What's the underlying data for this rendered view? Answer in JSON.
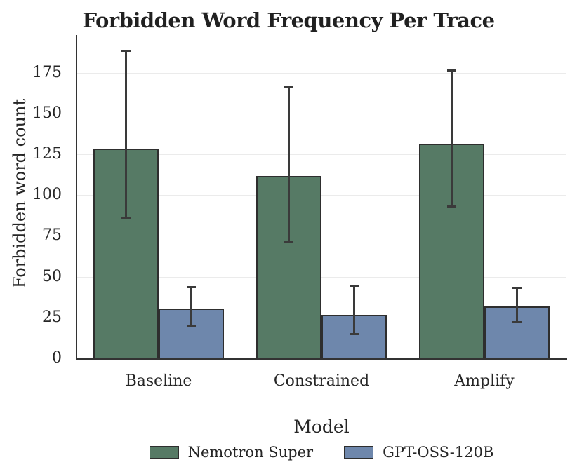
{
  "chart_data": {
    "type": "bar",
    "title": "Forbidden Word Frequency Per Trace",
    "xlabel": "Model",
    "ylabel": "Forbidden word count",
    "categories": [
      "Baseline",
      "Constrained",
      "Amplify"
    ],
    "series": [
      {
        "name": "Nemotron Super",
        "color": "#567a65",
        "values": [
          128.5,
          111.5,
          131.5
        ],
        "err_low": [
          86,
          71,
          93
        ],
        "err_high": [
          188.5,
          166.5,
          176.5
        ]
      },
      {
        "name": "GPT-OSS-120B",
        "color": "#6e87ac",
        "values": [
          30.5,
          26.5,
          32
        ],
        "err_low": [
          20,
          15,
          22
        ],
        "err_high": [
          43.5,
          44,
          43
        ]
      }
    ],
    "yticks": [
      0,
      25,
      50,
      75,
      100,
      125,
      150,
      175
    ],
    "ylim": [
      0,
      198
    ],
    "grid": "horizontal",
    "legend_position": "bottom",
    "error_bars": true,
    "colors": {
      "bar_edge": "#2e2e2e",
      "error_bar": "#3a3a3a",
      "gridline": "#ebebeb",
      "axis": "#333333",
      "text": "#262626",
      "background": "#ffffff"
    }
  }
}
